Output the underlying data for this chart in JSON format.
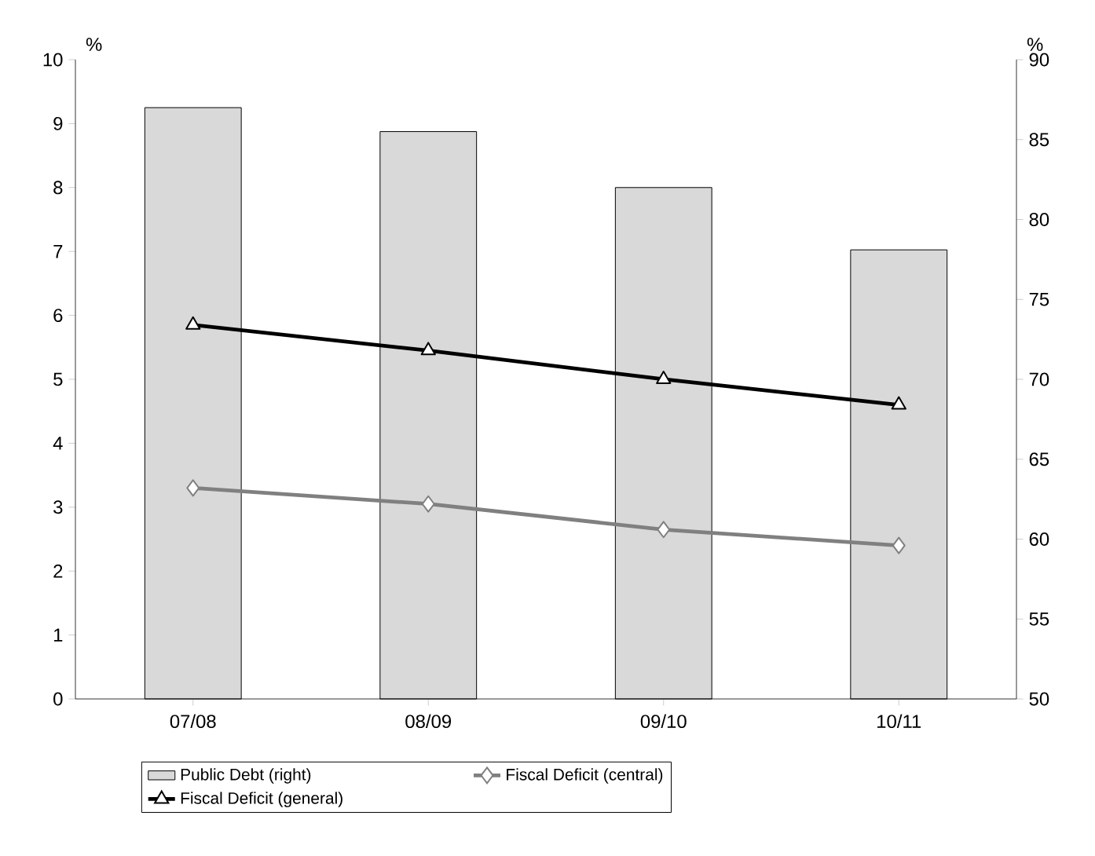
{
  "chart_data": {
    "type": "line",
    "ylabel": "%",
    "y2label": "%",
    "categories": [
      "07/08",
      "08/09",
      "09/10",
      "10/11"
    ],
    "series": [
      {
        "name": "Public Debt (right)",
        "type": "bar",
        "axis": "y2",
        "color": "#d9d9d9",
        "values": [
          87.0,
          85.5,
          82.0,
          78.1
        ]
      },
      {
        "name": "Fiscal Deficit (central)",
        "color": "#808080",
        "marker": "diamond",
        "values": [
          3.3,
          3.05,
          2.65,
          2.4
        ]
      },
      {
        "name": "Fiscal Deficit (general)",
        "color": "#000000",
        "marker": "triangle",
        "values": [
          5.85,
          5.45,
          5.0,
          4.6
        ]
      }
    ],
    "ylim": [
      0,
      10
    ],
    "yticks": [
      0,
      1,
      2,
      3,
      4,
      5,
      6,
      7,
      8,
      9,
      10
    ],
    "y2lim": [
      50,
      90
    ],
    "y2ticks": [
      50,
      55,
      60,
      65,
      70,
      75,
      80,
      85,
      90
    ],
    "legend": "bottom",
    "grid": false,
    "line_style": "solid"
  }
}
